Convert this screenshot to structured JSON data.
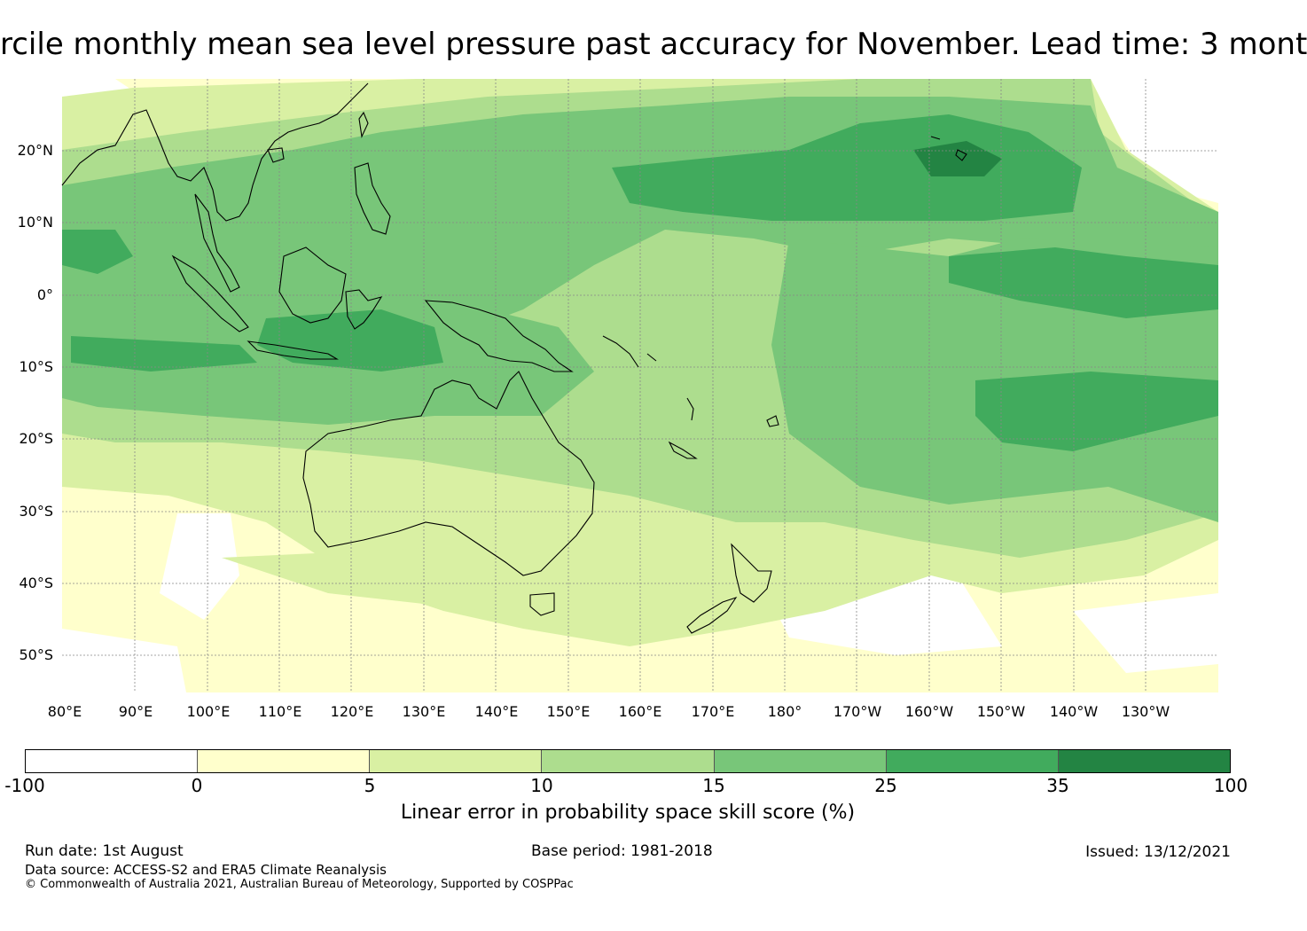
{
  "title": "rcile monthly mean sea level pressure past accuracy for November. Lead time: 3 mont",
  "map": {
    "lat_labels": [
      "20°N",
      "10°N",
      "0°",
      "10°S",
      "20°S",
      "30°S",
      "40°S",
      "50°S"
    ],
    "lon_labels": [
      "80°E",
      "90°E",
      "100°E",
      "110°E",
      "120°E",
      "130°E",
      "140°E",
      "150°E",
      "160°E",
      "170°E",
      "180°",
      "170°W",
      "160°W",
      "150°W",
      "140°W",
      "130°W"
    ]
  },
  "colorbar": {
    "ticks": [
      "-100",
      "0",
      "5",
      "10",
      "15",
      "25",
      "35",
      "100"
    ],
    "colors": [
      "#ffffff",
      "#ffffcc",
      "#d9f0a3",
      "#addd8e",
      "#78c679",
      "#41ab5d",
      "#238443"
    ],
    "label": "Linear error in probability space skill score (%)"
  },
  "footer": {
    "run_date": "Run date: 1st August",
    "base_period": "Base period: 1981-2018",
    "issued": "Issued: 13/12/2021",
    "data_source": "Data source: ACCESS-S2 and ERA5 Climate Reanalysis",
    "copyright": "© Commonwealth of Australia 2021, Australian Bureau of Meteorology, Supported by COSPPac"
  }
}
